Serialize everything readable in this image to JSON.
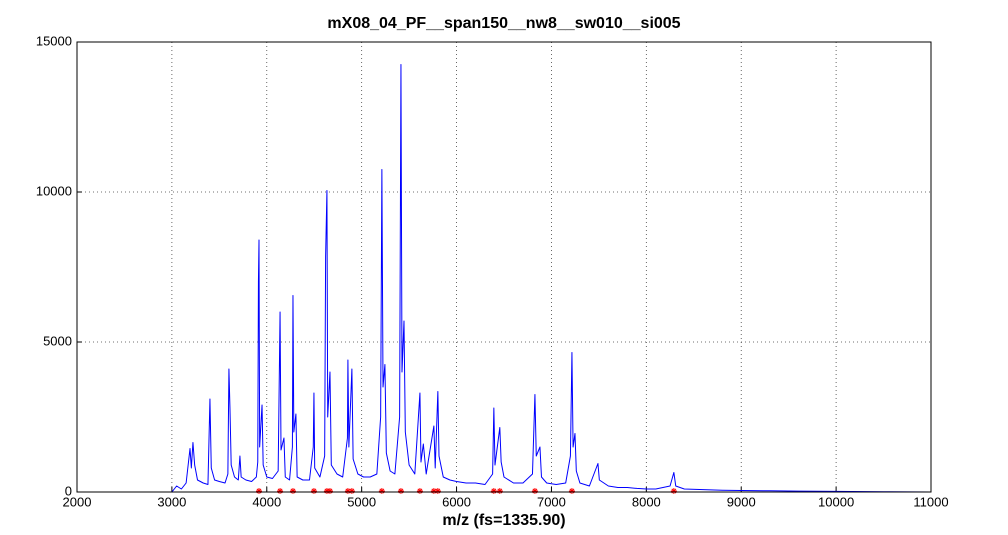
{
  "chart_data": {
    "type": "line",
    "title": "mX08_04_PF__span150__nw8__sw010__si005",
    "xlabel": "m/z (fs=1335.90)",
    "xlim": [
      2000,
      11000
    ],
    "xticks": [
      2000,
      3000,
      4000,
      5000,
      6000,
      7000,
      8000,
      9000,
      10000,
      11000
    ],
    "ylim": [
      0,
      15000
    ],
    "yticks": [
      0,
      5000,
      10000,
      15000
    ],
    "grid": true,
    "series": [
      {
        "color": "#0000ff",
        "marker": "none",
        "x": [
          3000,
          3050,
          3100,
          3150,
          3191,
          3205,
          3222,
          3240,
          3270,
          3330,
          3380,
          3401,
          3415,
          3450,
          3500,
          3560,
          3590,
          3601,
          3612,
          3625,
          3660,
          3700,
          3717,
          3730,
          3780,
          3840,
          3890,
          3905,
          3912,
          3918,
          3925,
          3950,
          3962,
          4000,
          4060,
          4120,
          4140,
          4150,
          4181,
          4195,
          4240,
          4270,
          4276,
          4285,
          4307,
          4320,
          4380,
          4450,
          4490,
          4497,
          4505,
          4560,
          4610,
          4620,
          4634,
          4642,
          4666,
          4680,
          4740,
          4800,
          4850,
          4855,
          4865,
          4897,
          4910,
          4960,
          5020,
          5090,
          5160,
          5200,
          5213,
          5225,
          5245,
          5260,
          5300,
          5350,
          5400,
          5414,
          5425,
          5446,
          5460,
          5500,
          5560,
          5614,
          5625,
          5650,
          5680,
          5761,
          5775,
          5803,
          5815,
          5860,
          5930,
          6000,
          6100,
          6200,
          6300,
          6380,
          6393,
          6405,
          6456,
          6470,
          6500,
          6600,
          6700,
          6800,
          6826,
          6840,
          6879,
          6895,
          6950,
          7050,
          7150,
          7200,
          7216,
          7228,
          7248,
          7262,
          7300,
          7400,
          7490,
          7505,
          7600,
          7700,
          7800,
          7900,
          8000,
          8100,
          8250,
          8290,
          8310,
          8400,
          8600,
          8800,
          9000,
          9300,
          9600,
          10000,
          10500,
          11000
        ],
        "values": [
          0,
          200,
          100,
          300,
          1450,
          800,
          1650,
          900,
          400,
          300,
          250,
          3100,
          800,
          400,
          350,
          300,
          600,
          4100,
          2800,
          900,
          500,
          400,
          1200,
          500,
          400,
          350,
          500,
          1000,
          7000,
          8400,
          1500,
          2900,
          900,
          500,
          450,
          700,
          6000,
          1400,
          1800,
          500,
          400,
          1500,
          6550,
          2000,
          2600,
          500,
          400,
          400,
          1500,
          3300,
          800,
          500,
          1200,
          7850,
          10050,
          2500,
          4000,
          900,
          600,
          500,
          1800,
          4400,
          1500,
          4100,
          1100,
          600,
          500,
          500,
          600,
          2500,
          10750,
          3500,
          4250,
          1300,
          700,
          600,
          2500,
          14250,
          4000,
          5700,
          2000,
          900,
          600,
          3300,
          1000,
          1600,
          600,
          2200,
          800,
          3350,
          1200,
          500,
          400,
          350,
          300,
          300,
          250,
          600,
          2800,
          900,
          2150,
          1000,
          500,
          300,
          300,
          600,
          3250,
          1200,
          1500,
          500,
          300,
          250,
          300,
          1200,
          4650,
          1500,
          1950,
          700,
          300,
          200,
          950,
          400,
          200,
          150,
          150,
          120,
          100,
          100,
          200,
          650,
          200,
          100,
          80,
          60,
          50,
          40,
          30,
          20,
          10,
          0
        ]
      },
      {
        "color": "#ff0000",
        "marker": "asterisk",
        "x": [
          3918,
          4140,
          4276,
          4497,
          4634,
          4666,
          4855,
          4897,
          5213,
          5414,
          5614,
          5761,
          5803,
          6393,
          6456,
          6826,
          7216,
          8290
        ],
        "values": [
          0,
          0,
          0,
          0,
          0,
          0,
          0,
          0,
          0,
          0,
          0,
          0,
          0,
          0,
          0,
          0,
          0,
          0
        ]
      }
    ]
  }
}
